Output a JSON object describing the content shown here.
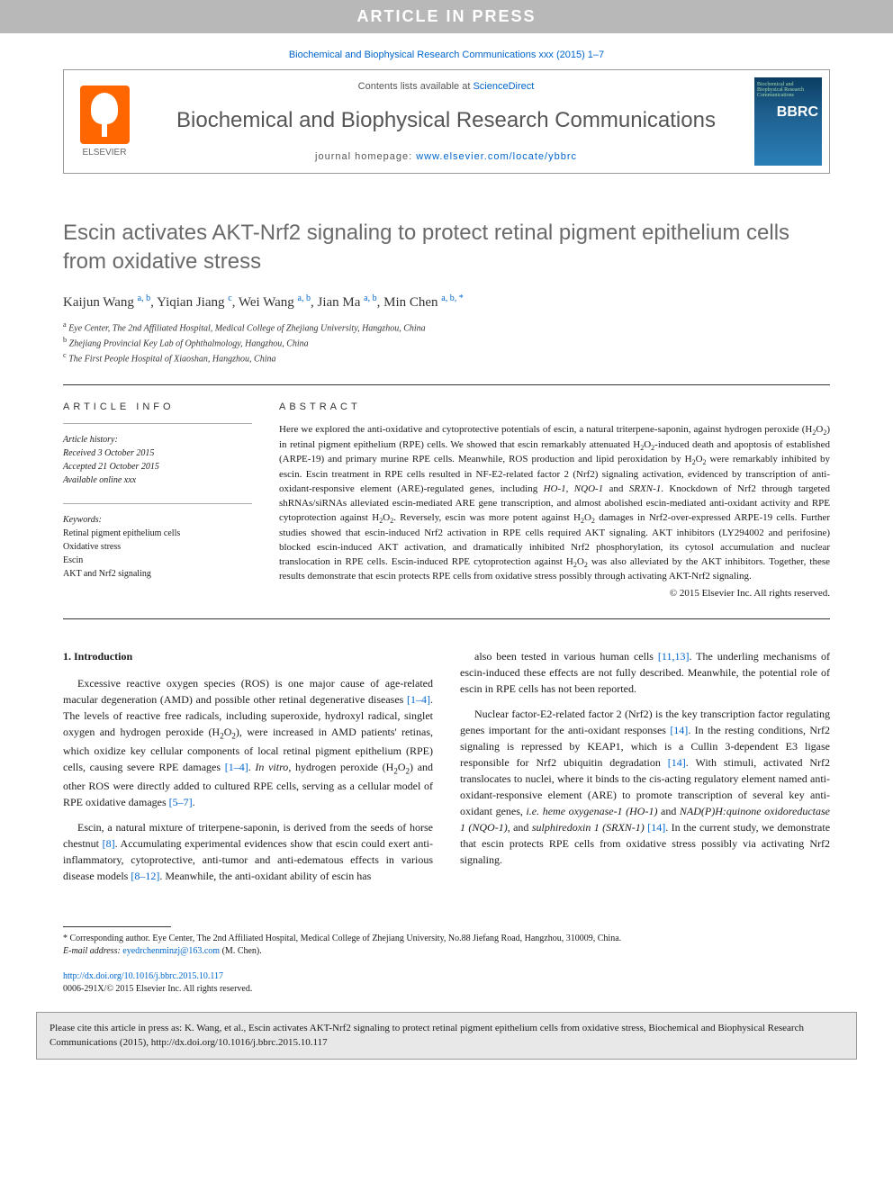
{
  "banner": "ARTICLE IN PRESS",
  "journal_ref": "Biochemical and Biophysical Research Communications xxx (2015) 1–7",
  "header": {
    "contents_prefix": "Contents lists available at ",
    "contents_link": "ScienceDirect",
    "journal_title": "Biochemical and Biophysical Research Communications",
    "homepage_prefix": "journal homepage: ",
    "homepage_url": "www.elsevier.com/locate/ybbrc",
    "publisher": "ELSEVIER",
    "cover_abbr": "BBRC",
    "cover_title": "Biochemical and Biophysical Research Communications"
  },
  "title": "Escin activates AKT-Nrf2 signaling to protect retinal pigment epithelium cells from oxidative stress",
  "authors_html": "Kaijun Wang <sup><a>a, b</a></sup>, Yiqian Jiang <sup><a>c</a></sup>, Wei Wang <sup><a>a, b</a></sup>, Jian Ma <sup><a>a, b</a></sup>, Min Chen <sup><a>a, b, *</a></sup>",
  "affiliations": {
    "a": "Eye Center, The 2nd Affiliated Hospital, Medical College of Zhejiang University, Hangzhou, China",
    "b": "Zhejiang Provincial Key Lab of Ophthalmology, Hangzhou, China",
    "c": "The First People Hospital of Xiaoshan, Hangzhou, China"
  },
  "article_info": {
    "label": "ARTICLE INFO",
    "history_label": "Article history:",
    "received": "Received 3 October 2015",
    "accepted": "Accepted 21 October 2015",
    "available": "Available online xxx",
    "keywords_label": "Keywords:",
    "keywords": [
      "Retinal pigment epithelium cells",
      "Oxidative stress",
      "Escin",
      "AKT and Nrf2 signaling"
    ]
  },
  "abstract": {
    "label": "ABSTRACT",
    "text": "Here we explored the anti-oxidative and cytoprotective potentials of escin, a natural triterpene-saponin, against hydrogen peroxide (H₂O₂) in retinal pigment epithelium (RPE) cells. We showed that escin remarkably attenuated H₂O₂-induced death and apoptosis of established (ARPE-19) and primary murine RPE cells. Meanwhile, ROS production and lipid peroxidation by H₂O₂ were remarkably inhibited by escin. Escin treatment in RPE cells resulted in NF-E2-related factor 2 (Nrf2) signaling activation, evidenced by transcription of anti-oxidant-responsive element (ARE)-regulated genes, including HO-1, NQO-1 and SRXN-1. Knockdown of Nrf2 through targeted shRNAs/siRNAs alleviated escin-mediated ARE gene transcription, and almost abolished escin-mediated anti-oxidant activity and RPE cytoprotection against H₂O₂. Reversely, escin was more potent against H₂O₂ damages in Nrf2-over-expressed ARPE-19 cells. Further studies showed that escin-induced Nrf2 activation in RPE cells required AKT signaling. AKT inhibitors (LY294002 and perifosine) blocked escin-induced AKT activation, and dramatically inhibited Nrf2 phosphorylation, its cytosol accumulation and nuclear translocation in RPE cells. Escin-induced RPE cytoprotection against H₂O₂ was also alleviated by the AKT inhibitors. Together, these results demonstrate that escin protects RPE cells from oxidative stress possibly through activating AKT-Nrf2 signaling.",
    "copyright": "© 2015 Elsevier Inc. All rights reserved."
  },
  "body": {
    "intro_heading": "1. Introduction",
    "p1": "Excessive reactive oxygen species (ROS) is one major cause of age-related macular degeneration (AMD) and possible other retinal degenerative diseases [1–4]. The levels of reactive free radicals, including superoxide, hydroxyl radical, singlet oxygen and hydrogen peroxide (H₂O₂), were increased in AMD patients' retinas, which oxidize key cellular components of local retinal pigment epithelium (RPE) cells, causing severe RPE damages [1–4]. In vitro, hydrogen peroxide (H₂O₂) and other ROS were directly added to cultured RPE cells, serving as a cellular model of RPE oxidative damages [5–7].",
    "p2": "Escin, a natural mixture of triterpene-saponin, is derived from the seeds of horse chestnut [8]. Accumulating experimental evidences show that escin could exert anti-inflammatory, cytoprotective, anti-tumor and anti-edematous effects in various disease models [8–12]. Meanwhile, the anti-oxidant ability of escin has",
    "p3": "also been tested in various human cells [11,13]. The underling mechanisms of escin-induced these effects are not fully described. Meanwhile, the potential role of escin in RPE cells has not been reported.",
    "p4": "Nuclear factor-E2-related factor 2 (Nrf2) is the key transcription factor regulating genes important for the anti-oxidant responses [14]. In the resting conditions, Nrf2 signaling is repressed by KEAP1, which is a Cullin 3-dependent E3 ligase responsible for Nrf2 ubiquitin degradation [14]. With stimuli, activated Nrf2 translocates to nuclei, where it binds to the cis-acting regulatory element named anti-oxidant-responsive element (ARE) to promote transcription of several key anti-oxidant genes, i.e. heme oxygenase-1 (HO-1) and NAD(P)H:quinone oxidoreductase 1 (NQO-1), and sulphiredoxin 1 (SRXN-1) [14]. In the current study, we demonstrate that escin protects RPE cells from oxidative stress possibly via activating Nrf2 signaling."
  },
  "footnote": {
    "corr": "* Corresponding author. Eye Center, The 2nd Affiliated Hospital, Medical College of Zhejiang University, No.88 Jiefang Road, Hangzhou, 310009, China.",
    "email_label": "E-mail address: ",
    "email": "eyedrchenminzj@163.com",
    "email_suffix": " (M. Chen)."
  },
  "doi": {
    "url": "http://dx.doi.org/10.1016/j.bbrc.2015.10.117",
    "issn_line": "0006-291X/© 2015 Elsevier Inc. All rights reserved."
  },
  "cite_box": "Please cite this article in press as: K. Wang, et al., Escin activates AKT-Nrf2 signaling to protect retinal pigment epithelium cells from oxidative stress, Biochemical and Biophysical Research Communications (2015), http://dx.doi.org/10.1016/j.bbrc.2015.10.117"
}
